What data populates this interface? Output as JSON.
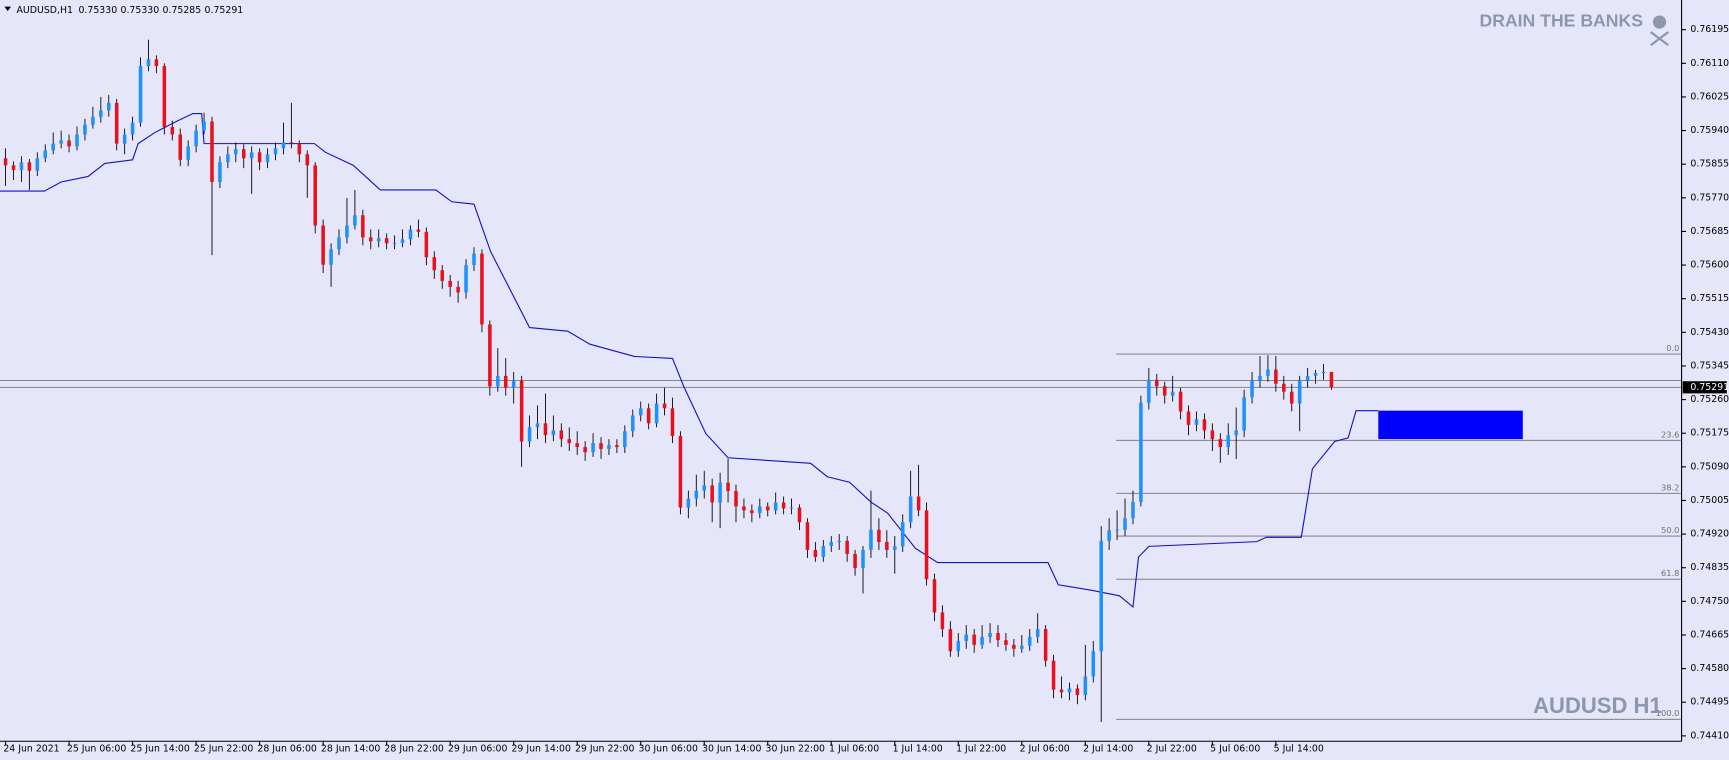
{
  "chart_data": {
    "type": "candlestick",
    "symbol": "AUDUSD,H1",
    "last_ohlc_labels": [
      "0.75330",
      "0.75330",
      "0.75285",
      "0.75291"
    ],
    "watermark_top": "DRAIN THE BANKS",
    "watermark_bottom": "AUDUSD H1",
    "up_color": "#1e90ff",
    "down_color": "#e8101c",
    "wick_color": "#000000",
    "xlim": [
      -0.7,
      211.1
    ],
    "ylim": [
      0.74402,
      0.7627
    ],
    "yticks": [
      {
        "value": 0.76195,
        "label": "0.76195"
      },
      {
        "value": 0.7611,
        "label": "0.76110"
      },
      {
        "value": 0.76025,
        "label": "0.76025"
      },
      {
        "value": 0.7594,
        "label": "0.75940"
      },
      {
        "value": 0.75855,
        "label": "0.75855"
      },
      {
        "value": 0.7577,
        "label": "0.75770"
      },
      {
        "value": 0.75685,
        "label": "0.75685"
      },
      {
        "value": 0.756,
        "label": "0.75600"
      },
      {
        "value": 0.75515,
        "label": "0.75515"
      },
      {
        "value": 0.7543,
        "label": "0.75430"
      },
      {
        "value": 0.75345,
        "label": "0.75345"
      },
      {
        "value": 0.7526,
        "label": "0.75260"
      },
      {
        "value": 0.75175,
        "label": "0.75175"
      },
      {
        "value": 0.7509,
        "label": "0.75090"
      },
      {
        "value": 0.75005,
        "label": "0.75005"
      },
      {
        "value": 0.7492,
        "label": "0.74920"
      },
      {
        "value": 0.74835,
        "label": "0.74835"
      },
      {
        "value": 0.7475,
        "label": "0.74750"
      },
      {
        "value": 0.74665,
        "label": "0.74665"
      },
      {
        "value": 0.7458,
        "label": "0.74580"
      },
      {
        "value": 0.74495,
        "label": "0.74495"
      },
      {
        "value": 0.7441,
        "label": "0.74410"
      }
    ],
    "xticks": [
      {
        "value": 0,
        "label": "24 Jun 2021"
      },
      {
        "value": 8,
        "label": "25 Jun 06:00"
      },
      {
        "value": 16,
        "label": "25 Jun 14:00"
      },
      {
        "value": 24,
        "label": "25 Jun 22:00"
      },
      {
        "value": 32,
        "label": "28 Jun 06:00"
      },
      {
        "value": 40,
        "label": "28 Jun 14:00"
      },
      {
        "value": 48,
        "label": "28 Jun 22:00"
      },
      {
        "value": 56,
        "label": "29 Jun 06:00"
      },
      {
        "value": 64,
        "label": "29 Jun 14:00"
      },
      {
        "value": 72,
        "label": "29 Jun 22:00"
      },
      {
        "value": 80,
        "label": "30 Jun 06:00"
      },
      {
        "value": 88,
        "label": "30 Jun 14:00"
      },
      {
        "value": 96,
        "label": "30 Jun 22:00"
      },
      {
        "value": 104,
        "label": "1 Jul 06:00"
      },
      {
        "value": 112,
        "label": "1 Jul 14:00"
      },
      {
        "value": 120,
        "label": "1 Jul 22:00"
      },
      {
        "value": 128,
        "label": "2 Jul 06:00"
      },
      {
        "value": 136,
        "label": "2 Jul 14:00"
      },
      {
        "value": 144,
        "label": "2 Jul 22:00"
      },
      {
        "value": 152,
        "label": "5 Jul 06:00"
      },
      {
        "value": 160,
        "label": "5 Jul 14:00"
      }
    ],
    "candles": [
      [
        0.7587,
        0.75895,
        0.758,
        0.75852
      ],
      [
        0.75852,
        0.75862,
        0.75815,
        0.7584
      ],
      [
        0.7584,
        0.75875,
        0.7581,
        0.7586
      ],
      [
        0.7586,
        0.75868,
        0.7579,
        0.75838
      ],
      [
        0.75838,
        0.75885,
        0.75825,
        0.7587
      ],
      [
        0.7587,
        0.75905,
        0.7586,
        0.7589
      ],
      [
        0.7589,
        0.75935,
        0.7588,
        0.75907
      ],
      [
        0.75907,
        0.7594,
        0.75895,
        0.75915
      ],
      [
        0.75915,
        0.7593,
        0.75885,
        0.759
      ],
      [
        0.759,
        0.7595,
        0.7589,
        0.7593
      ],
      [
        0.7593,
        0.7597,
        0.75915,
        0.75955
      ],
      [
        0.75955,
        0.76,
        0.75945,
        0.75975
      ],
      [
        0.75975,
        0.76025,
        0.7596,
        0.75991
      ],
      [
        0.75991,
        0.7603,
        0.75975,
        0.7601
      ],
      [
        0.7601,
        0.7602,
        0.7589,
        0.75907
      ],
      [
        0.75907,
        0.75945,
        0.7588,
        0.7593
      ],
      [
        0.7593,
        0.75975,
        0.75915,
        0.7596
      ],
      [
        0.7596,
        0.76125,
        0.7595,
        0.76103
      ],
      [
        0.76103,
        0.7617,
        0.7609,
        0.7612
      ],
      [
        0.7612,
        0.7613,
        0.76085,
        0.76103
      ],
      [
        0.76103,
        0.7611,
        0.7593,
        0.75949
      ],
      [
        0.75949,
        0.75965,
        0.75915,
        0.7593
      ],
      [
        0.7593,
        0.75945,
        0.7585,
        0.75866
      ],
      [
        0.75866,
        0.75915,
        0.7585,
        0.759
      ],
      [
        0.759,
        0.75955,
        0.75885,
        0.7594
      ],
      [
        0.7594,
        0.75985,
        0.7593,
        0.75963
      ],
      [
        0.75963,
        0.75975,
        0.75625,
        0.7581
      ],
      [
        0.7581,
        0.75875,
        0.75795,
        0.7586
      ],
      [
        0.7586,
        0.759,
        0.75845,
        0.7588
      ],
      [
        0.7588,
        0.7591,
        0.7586,
        0.75893
      ],
      [
        0.75893,
        0.75905,
        0.75845,
        0.7587
      ],
      [
        0.7587,
        0.759,
        0.7578,
        0.75885
      ],
      [
        0.75885,
        0.75895,
        0.7584,
        0.7586
      ],
      [
        0.7586,
        0.75895,
        0.75845,
        0.7588
      ],
      [
        0.7588,
        0.7591,
        0.75865,
        0.75895
      ],
      [
        0.75895,
        0.7596,
        0.7588,
        0.7591
      ],
      [
        0.7591,
        0.7601,
        0.75895,
        0.75907
      ],
      [
        0.75907,
        0.75915,
        0.7586,
        0.7588
      ],
      [
        0.7588,
        0.7589,
        0.7577,
        0.75852
      ],
      [
        0.75852,
        0.7586,
        0.7568,
        0.757
      ],
      [
        0.757,
        0.75715,
        0.7558,
        0.75601
      ],
      [
        0.75601,
        0.75655,
        0.75545,
        0.7564
      ],
      [
        0.7564,
        0.7569,
        0.75625,
        0.7567
      ],
      [
        0.7567,
        0.7577,
        0.75655,
        0.757
      ],
      [
        0.757,
        0.7579,
        0.7569,
        0.75726
      ],
      [
        0.75726,
        0.7574,
        0.7565,
        0.7567
      ],
      [
        0.7567,
        0.7569,
        0.7564,
        0.7566
      ],
      [
        0.7566,
        0.7569,
        0.75645,
        0.75668
      ],
      [
        0.75668,
        0.7568,
        0.7564,
        0.75655
      ],
      [
        0.75655,
        0.75675,
        0.7564,
        0.75656
      ],
      [
        0.75656,
        0.7569,
        0.75645,
        0.75665
      ],
      [
        0.75665,
        0.757,
        0.7565,
        0.7569
      ],
      [
        0.7569,
        0.75715,
        0.7567,
        0.75684
      ],
      [
        0.75684,
        0.75695,
        0.756,
        0.7562
      ],
      [
        0.7562,
        0.75635,
        0.75565,
        0.75587
      ],
      [
        0.75587,
        0.756,
        0.7554,
        0.7556
      ],
      [
        0.7556,
        0.75575,
        0.7552,
        0.75545
      ],
      [
        0.75545,
        0.7556,
        0.75505,
        0.75531
      ],
      [
        0.75531,
        0.75615,
        0.75515,
        0.756
      ],
      [
        0.756,
        0.75645,
        0.75585,
        0.75629
      ],
      [
        0.75629,
        0.7564,
        0.7543,
        0.7545
      ],
      [
        0.7545,
        0.7546,
        0.7527,
        0.75294
      ],
      [
        0.75294,
        0.7539,
        0.7528,
        0.7532
      ],
      [
        0.7532,
        0.75365,
        0.7527,
        0.7529
      ],
      [
        0.7529,
        0.7533,
        0.7525,
        0.75308
      ],
      [
        0.75308,
        0.7532,
        0.7509,
        0.75154
      ],
      [
        0.75154,
        0.7522,
        0.7514,
        0.7519
      ],
      [
        0.7519,
        0.75245,
        0.7516,
        0.752
      ],
      [
        0.752,
        0.75275,
        0.7515,
        0.7517
      ],
      [
        0.7517,
        0.7522,
        0.75155,
        0.75182
      ],
      [
        0.75182,
        0.752,
        0.7514,
        0.7516
      ],
      [
        0.7516,
        0.7519,
        0.7513,
        0.7515
      ],
      [
        0.7515,
        0.7518,
        0.7512,
        0.7514
      ],
      [
        0.7514,
        0.75155,
        0.75105,
        0.75127
      ],
      [
        0.75127,
        0.75175,
        0.75115,
        0.7515
      ],
      [
        0.7515,
        0.75165,
        0.7511,
        0.75135
      ],
      [
        0.75135,
        0.7516,
        0.7512,
        0.75145
      ],
      [
        0.75145,
        0.7516,
        0.75125,
        0.7514
      ],
      [
        0.7514,
        0.75195,
        0.75125,
        0.7518
      ],
      [
        0.7518,
        0.75235,
        0.75165,
        0.7522
      ],
      [
        0.7522,
        0.75255,
        0.75205,
        0.75238
      ],
      [
        0.75238,
        0.7525,
        0.75185,
        0.752
      ],
      [
        0.752,
        0.75275,
        0.7519,
        0.7525
      ],
      [
        0.7525,
        0.7529,
        0.7522,
        0.75238
      ],
      [
        0.75238,
        0.75265,
        0.7515,
        0.75168
      ],
      [
        0.75168,
        0.7518,
        0.7497,
        0.74987
      ],
      [
        0.74987,
        0.7503,
        0.7496,
        0.7501
      ],
      [
        0.7501,
        0.7507,
        0.7499,
        0.7503
      ],
      [
        0.7503,
        0.7508,
        0.7501,
        0.75043
      ],
      [
        0.75043,
        0.7506,
        0.7495,
        0.75
      ],
      [
        0.75,
        0.75075,
        0.74935,
        0.7505
      ],
      [
        0.7505,
        0.7511,
        0.75,
        0.75029
      ],
      [
        0.75029,
        0.75045,
        0.7495,
        0.7499
      ],
      [
        0.7499,
        0.7501,
        0.7496,
        0.7498
      ],
      [
        0.7498,
        0.74995,
        0.7495,
        0.74973
      ],
      [
        0.74973,
        0.7501,
        0.7496,
        0.7499
      ],
      [
        0.7499,
        0.75,
        0.74965,
        0.7498
      ],
      [
        0.7498,
        0.75025,
        0.7497,
        0.75
      ],
      [
        0.75,
        0.75015,
        0.7497,
        0.74985
      ],
      [
        0.74985,
        0.7501,
        0.7497,
        0.74987
      ],
      [
        0.74987,
        0.74995,
        0.7493,
        0.7495
      ],
      [
        0.7495,
        0.7496,
        0.7486,
        0.7488
      ],
      [
        0.7488,
        0.749,
        0.7485,
        0.74862
      ],
      [
        0.74862,
        0.74905,
        0.7485,
        0.7489
      ],
      [
        0.7489,
        0.74915,
        0.74875,
        0.749
      ],
      [
        0.749,
        0.7492,
        0.7488,
        0.74903
      ],
      [
        0.74903,
        0.74915,
        0.7485,
        0.7487
      ],
      [
        0.7487,
        0.7488,
        0.74815,
        0.74834
      ],
      [
        0.74834,
        0.7489,
        0.7477,
        0.7488
      ],
      [
        0.7488,
        0.7503,
        0.7486,
        0.74931
      ],
      [
        0.74931,
        0.7496,
        0.7488,
        0.749
      ],
      [
        0.749,
        0.7493,
        0.7486,
        0.7488
      ],
      [
        0.7488,
        0.74915,
        0.7482,
        0.74889
      ],
      [
        0.74889,
        0.7497,
        0.74875,
        0.7495
      ],
      [
        0.7495,
        0.7508,
        0.74935,
        0.75015
      ],
      [
        0.75015,
        0.75095,
        0.74965,
        0.7498
      ],
      [
        0.7498,
        0.75,
        0.7479,
        0.74806
      ],
      [
        0.74806,
        0.7482,
        0.747,
        0.74722
      ],
      [
        0.74722,
        0.7474,
        0.7466,
        0.7468
      ],
      [
        0.7468,
        0.747,
        0.7461,
        0.74624
      ],
      [
        0.74624,
        0.7467,
        0.7461,
        0.7465
      ],
      [
        0.7465,
        0.7469,
        0.7463,
        0.74666
      ],
      [
        0.74666,
        0.7468,
        0.7462,
        0.7464
      ],
      [
        0.7464,
        0.7469,
        0.7463,
        0.7466
      ],
      [
        0.7466,
        0.74695,
        0.74645,
        0.7467
      ],
      [
        0.7467,
        0.7469,
        0.74635,
        0.74652
      ],
      [
        0.74652,
        0.7467,
        0.74625,
        0.7464
      ],
      [
        0.7464,
        0.74655,
        0.7461,
        0.7463
      ],
      [
        0.7463,
        0.74665,
        0.7462,
        0.74638
      ],
      [
        0.74638,
        0.7468,
        0.74625,
        0.7466
      ],
      [
        0.7466,
        0.7472,
        0.74645,
        0.7468
      ],
      [
        0.7468,
        0.7469,
        0.74585,
        0.746
      ],
      [
        0.746,
        0.74615,
        0.74505,
        0.74527
      ],
      [
        0.74527,
        0.7456,
        0.74505,
        0.7452
      ],
      [
        0.7452,
        0.74545,
        0.745,
        0.7453
      ],
      [
        0.7453,
        0.7454,
        0.7449,
        0.74513
      ],
      [
        0.74513,
        0.7464,
        0.745,
        0.7456
      ],
      [
        0.7456,
        0.7465,
        0.74545,
        0.74624
      ],
      [
        0.74624,
        0.7494,
        0.74445,
        0.74903
      ],
      [
        0.74903,
        0.7496,
        0.7488,
        0.7493
      ],
      [
        0.7493,
        0.7498,
        0.74905,
        0.74931
      ],
      [
        0.74931,
        0.7501,
        0.74915,
        0.7496
      ],
      [
        0.7496,
        0.7503,
        0.74945,
        0.75001
      ],
      [
        0.75001,
        0.7527,
        0.7499,
        0.75252
      ],
      [
        0.75252,
        0.7534,
        0.75235,
        0.7531
      ],
      [
        0.7531,
        0.75325,
        0.7527,
        0.75294
      ],
      [
        0.75294,
        0.75305,
        0.7525,
        0.7527
      ],
      [
        0.7527,
        0.7532,
        0.75255,
        0.7528
      ],
      [
        0.7528,
        0.7529,
        0.7521,
        0.7523
      ],
      [
        0.7523,
        0.75245,
        0.7517,
        0.75196
      ],
      [
        0.75196,
        0.7523,
        0.7518,
        0.7521
      ],
      [
        0.7521,
        0.75225,
        0.7516,
        0.75182
      ],
      [
        0.75182,
        0.752,
        0.7513,
        0.7516
      ],
      [
        0.7516,
        0.75175,
        0.751,
        0.7514
      ],
      [
        0.7514,
        0.752,
        0.7512,
        0.7517
      ],
      [
        0.7517,
        0.7524,
        0.7511,
        0.75182
      ],
      [
        0.75182,
        0.75285,
        0.75165,
        0.75266
      ],
      [
        0.75266,
        0.7533,
        0.7525,
        0.75308
      ],
      [
        0.75308,
        0.7537,
        0.7529,
        0.7532
      ],
      [
        0.7532,
        0.75372,
        0.75305,
        0.75336
      ],
      [
        0.75336,
        0.7537,
        0.7528,
        0.753
      ],
      [
        0.753,
        0.7532,
        0.7526,
        0.7528
      ],
      [
        0.7528,
        0.753,
        0.7523,
        0.7525
      ],
      [
        0.7525,
        0.7532,
        0.7518,
        0.75308
      ],
      [
        0.75308,
        0.7534,
        0.7529,
        0.7532
      ],
      [
        0.7532,
        0.75335,
        0.753,
        0.75327
      ],
      [
        0.75327,
        0.7535,
        0.7531,
        0.7533
      ],
      [
        0.7533,
        0.7533,
        0.75285,
        0.75291
      ]
    ],
    "indicator": {
      "color": "#1010c8",
      "x": [
        -0.7,
        4.9,
        7,
        10.4,
        12.5,
        16,
        16.7,
        18.8,
        21.5,
        23.6,
        24.7,
        25,
        38.9,
        40.3,
        43.8,
        47.2,
        54.2,
        56.2,
        59,
        61.1,
        66,
        70.8,
        73.6,
        79.2,
        84,
        85.4,
        88.2,
        91,
        101.4,
        103.5,
        106.3,
        109,
        111.1,
        114.6,
        117.4,
        131.3,
        132.6,
        136.8,
        140.3,
        142,
        142.7,
        144,
        157.6,
        158.8,
        163.2,
        164.6,
        167.4,
        169.1,
        170.1,
        172.9
      ],
      "values": [
        0.75787,
        0.75787,
        0.7581,
        0.75824,
        0.75857,
        0.75866,
        0.75907,
        0.75935,
        0.75963,
        0.75983,
        0.75983,
        0.75907,
        0.75907,
        0.75885,
        0.75852,
        0.7579,
        0.7579,
        0.7576,
        0.75754,
        0.75634,
        0.75442,
        0.75433,
        0.754,
        0.75369,
        0.75364,
        0.75294,
        0.75174,
        0.75113,
        0.75099,
        0.75065,
        0.75051,
        0.75001,
        0.74973,
        0.74884,
        0.74848,
        0.74848,
        0.74792,
        0.74778,
        0.74764,
        0.74736,
        0.74862,
        0.74889,
        0.74901,
        0.74912,
        0.74912,
        0.75085,
        0.75154,
        0.75163,
        0.75232,
        0.75232
      ]
    },
    "fib": {
      "from_bar": 139.9,
      "color": "#707070",
      "levels": [
        {
          "label": "0.0",
          "price": 0.75375
        },
        {
          "label": "23.6",
          "price": 0.75157
        },
        {
          "label": "38.2",
          "price": 0.75023
        },
        {
          "label": "50.0",
          "price": 0.74915
        },
        {
          "label": "61.8",
          "price": 0.74806
        },
        {
          "label": "100.0",
          "price": 0.74452
        }
      ]
    },
    "zone": {
      "from_bar": 172.9,
      "to_bar": 191.1,
      "top": 0.75232,
      "bottom": 0.7516,
      "color": "#0000ff"
    },
    "price_lines": [
      0.75308,
      0.75291
    ],
    "current_price": 0.75291
  }
}
